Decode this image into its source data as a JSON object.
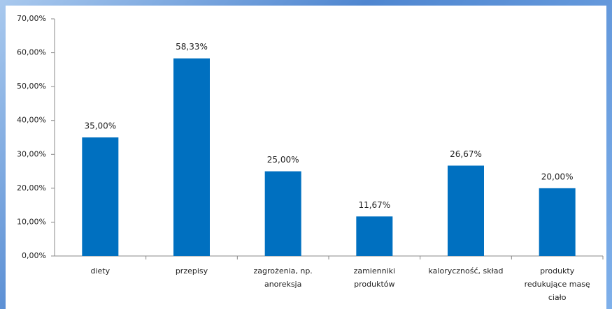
{
  "chart_data": {
    "type": "bar",
    "categories": [
      [
        "diety"
      ],
      [
        "przepisy"
      ],
      [
        "zagrożenia, np.",
        "anoreksja"
      ],
      [
        "zamienniki",
        "produktów"
      ],
      [
        "kaloryczność, skład"
      ],
      [
        "produkty",
        "redukujące masę",
        "ciało"
      ]
    ],
    "values": [
      35,
      58.33,
      25,
      11.67,
      26.67,
      20
    ],
    "value_labels": [
      "35,00%",
      "58,33%",
      "25,00%",
      "11,67%",
      "26,67%",
      "20,00%"
    ],
    "color": "#0070c0",
    "ylim": [
      0,
      70
    ],
    "yticks": [
      {
        "value": 0,
        "label": "0,00%"
      },
      {
        "value": 10,
        "label": "10,00%"
      },
      {
        "value": 20,
        "label": "20,00%"
      },
      {
        "value": 30,
        "label": "30,00%"
      },
      {
        "value": 40,
        "label": "40,00%"
      },
      {
        "value": 50,
        "label": "50,00%"
      },
      {
        "value": 60,
        "label": "60,00%"
      },
      {
        "value": 70,
        "label": "70,00%"
      }
    ],
    "grid": false
  }
}
